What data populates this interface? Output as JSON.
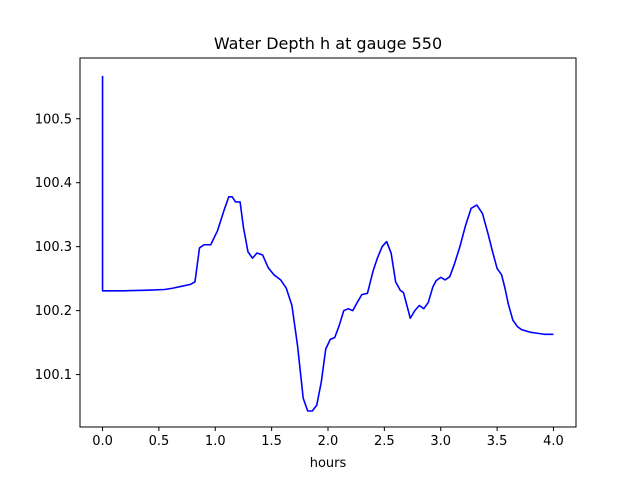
{
  "chart_data": {
    "type": "line",
    "title": "Water Depth h at gauge 550",
    "xlabel": "hours",
    "ylabel": "",
    "xlim": [
      -0.2,
      4.2
    ],
    "ylim": [
      100.018,
      100.595
    ],
    "x_ticks": [
      0.0,
      0.5,
      1.0,
      1.5,
      2.0,
      2.5,
      3.0,
      3.5,
      4.0
    ],
    "x_tick_labels": [
      "0.0",
      "0.5",
      "1.0",
      "1.5",
      "2.0",
      "2.5",
      "3.0",
      "3.5",
      "4.0"
    ],
    "y_ticks": [
      100.1,
      100.2,
      100.3,
      100.4,
      100.5
    ],
    "y_tick_labels": [
      "100.1",
      "100.2",
      "100.3",
      "100.4",
      "100.5"
    ],
    "grid": false,
    "series": [
      {
        "color": "#0000ff",
        "x": [
          0.0,
          0.0,
          0.001,
          0.2,
          0.4,
          0.55,
          0.62,
          0.7,
          0.78,
          0.82,
          0.86,
          0.9,
          0.96,
          1.02,
          1.08,
          1.12,
          1.15,
          1.18,
          1.22,
          1.25,
          1.29,
          1.33,
          1.37,
          1.42,
          1.47,
          1.52,
          1.58,
          1.63,
          1.68,
          1.73,
          1.78,
          1.82,
          1.86,
          1.9,
          1.94,
          1.98,
          2.02,
          2.06,
          2.1,
          2.14,
          2.18,
          2.22,
          2.26,
          2.3,
          2.35,
          2.4,
          2.44,
          2.48,
          2.52,
          2.56,
          2.6,
          2.64,
          2.67,
          2.7,
          2.73,
          2.77,
          2.81,
          2.85,
          2.89,
          2.93,
          2.96,
          3.0,
          3.04,
          3.08,
          3.12,
          3.17,
          3.22,
          3.27,
          3.32,
          3.37,
          3.42,
          3.46,
          3.5,
          3.54,
          3.57,
          3.6,
          3.64,
          3.68,
          3.72,
          3.76,
          3.8,
          3.84,
          3.88,
          3.92,
          3.96,
          4.0
        ],
        "y": [
          100.567,
          100.231,
          100.231,
          100.231,
          100.232,
          100.233,
          100.235,
          100.238,
          100.241,
          100.245,
          100.298,
          100.303,
          100.303,
          100.325,
          100.358,
          100.378,
          100.378,
          100.37,
          100.37,
          100.33,
          100.292,
          100.282,
          100.29,
          100.287,
          100.267,
          100.256,
          100.248,
          100.235,
          100.208,
          100.145,
          100.063,
          100.043,
          100.043,
          100.052,
          100.088,
          100.14,
          100.155,
          100.158,
          100.177,
          100.2,
          100.203,
          100.2,
          100.213,
          100.225,
          100.227,
          100.262,
          100.283,
          100.3,
          100.308,
          100.29,
          100.245,
          100.232,
          100.228,
          100.208,
          100.188,
          100.2,
          100.208,
          100.203,
          100.213,
          100.237,
          100.247,
          100.252,
          100.248,
          100.253,
          100.272,
          100.3,
          100.333,
          100.36,
          100.365,
          100.352,
          100.32,
          100.292,
          100.266,
          100.256,
          100.235,
          100.21,
          100.185,
          100.175,
          100.17,
          100.168,
          100.166,
          100.165,
          100.164,
          100.163,
          100.163,
          100.163
        ]
      }
    ]
  }
}
